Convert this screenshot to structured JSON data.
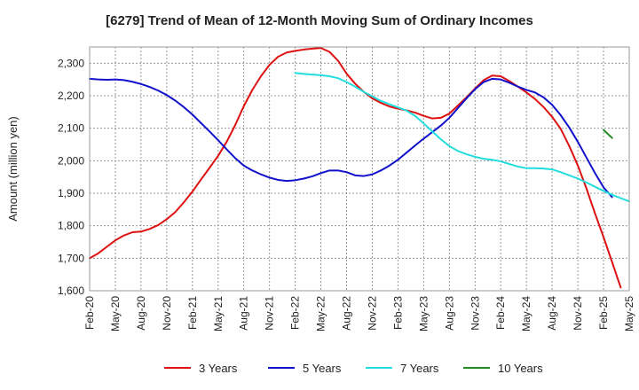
{
  "chart_data": {
    "type": "line",
    "title": "[6279]  Trend of Mean of 12-Month Moving Sum of Ordinary Incomes",
    "xlabel": "",
    "ylabel": "Amount (million yen)",
    "ylim": [
      1600,
      2350
    ],
    "yticks": [
      1600,
      1700,
      1800,
      1900,
      2000,
      2100,
      2200,
      2300
    ],
    "ytick_labels": [
      "1,600",
      "1,700",
      "1,800",
      "1,900",
      "2,000",
      "2,100",
      "2,200",
      "2,300"
    ],
    "x_tick_labels": [
      "Feb-20",
      "May-20",
      "Aug-20",
      "Nov-20",
      "Feb-21",
      "May-21",
      "Aug-21",
      "Nov-21",
      "Feb-22",
      "May-22",
      "Aug-22",
      "Nov-22",
      "Feb-23",
      "May-23",
      "Aug-23",
      "Nov-23",
      "Feb-24",
      "May-24",
      "Aug-24",
      "Nov-24",
      "Feb-25",
      "May-25"
    ],
    "grid": true,
    "legend_position": "bottom",
    "series": [
      {
        "name": "3 Years",
        "color": "#dd1111",
        "start_month_index": 0,
        "values": [
          1700,
          1715,
          1735,
          1755,
          1770,
          1780,
          1782,
          1790,
          1802,
          1820,
          1842,
          1872,
          1905,
          1942,
          1978,
          2015,
          2058,
          2110,
          2168,
          2218,
          2260,
          2295,
          2320,
          2333,
          2338,
          2342,
          2345,
          2347,
          2335,
          2308,
          2268,
          2237,
          2212,
          2192,
          2178,
          2167,
          2160,
          2155,
          2148,
          2138,
          2130,
          2132,
          2145,
          2170,
          2195,
          2222,
          2248,
          2262,
          2260,
          2245,
          2228,
          2210,
          2190,
          2165,
          2135,
          2098,
          2045,
          1985,
          1915,
          1838,
          1765,
          1688,
          1610
        ]
      },
      {
        "name": "5 Years",
        "color": "#1111cc",
        "start_month_index": 0,
        "values": [
          2252,
          2250,
          2249,
          2250,
          2248,
          2243,
          2236,
          2227,
          2216,
          2202,
          2185,
          2165,
          2142,
          2116,
          2090,
          2063,
          2035,
          2008,
          1985,
          1970,
          1958,
          1948,
          1941,
          1938,
          1940,
          1945,
          1952,
          1962,
          1970,
          1970,
          1965,
          1955,
          1953,
          1958,
          1970,
          1985,
          2003,
          2025,
          2047,
          2068,
          2088,
          2108,
          2132,
          2162,
          2192,
          2220,
          2242,
          2252,
          2250,
          2240,
          2228,
          2218,
          2210,
          2195,
          2172,
          2140,
          2102,
          2058,
          2010,
          1962,
          1918,
          1888
        ]
      },
      {
        "name": "7 Years",
        "color": "#22dddd",
        "start_month_index": 24,
        "values": [
          2270,
          2267,
          2265,
          2263,
          2260,
          2254,
          2242,
          2228,
          2212,
          2198,
          2184,
          2174,
          2164,
          2154,
          2138,
          2115,
          2090,
          2066,
          2045,
          2030,
          2020,
          2012,
          2006,
          2003,
          1998,
          1990,
          1982,
          1977,
          1977,
          1976,
          1973,
          1965,
          1955,
          1945,
          1933,
          1920,
          1907,
          1895,
          1885,
          1875
        ]
      },
      {
        "name": "10 Years",
        "color": "#228822",
        "start_month_index": 60,
        "values": [
          2095,
          2070
        ]
      }
    ]
  }
}
